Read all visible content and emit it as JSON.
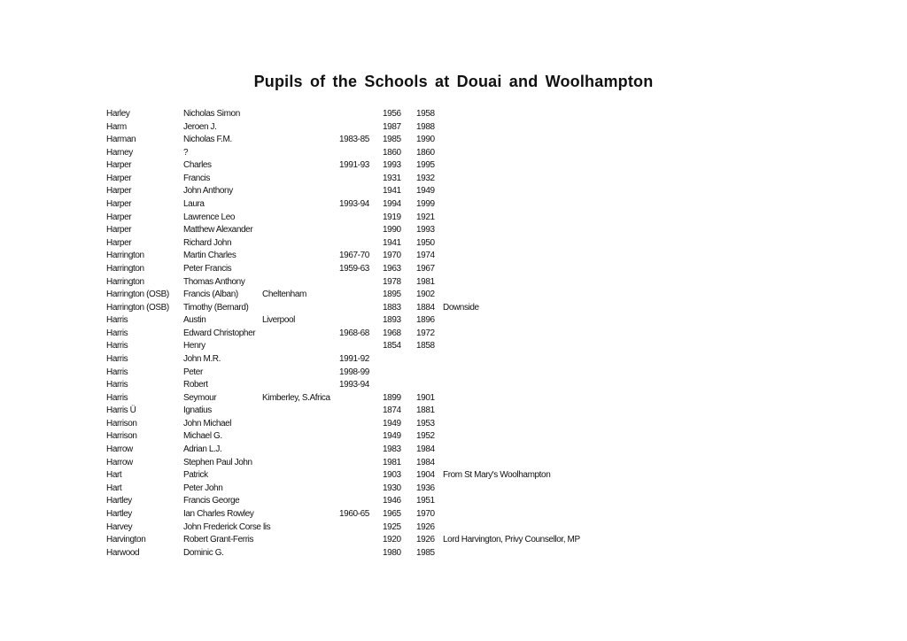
{
  "title": "Pupils of the Schools at Douai and Woolhampton",
  "rows": [
    [
      "Harley",
      "Nicholas Simon",
      "",
      "",
      "1956",
      "1958",
      ""
    ],
    [
      "Harm",
      "Jeroen J.",
      "",
      "",
      "1987",
      "1988",
      ""
    ],
    [
      "Harman",
      "Nicholas F.M.",
      "",
      "1983-85",
      "1985",
      "1990",
      ""
    ],
    [
      "Harney",
      "?",
      "",
      "",
      "1860",
      "1860",
      ""
    ],
    [
      "Harper",
      "Charles",
      "",
      "1991-93",
      "1993",
      "1995",
      ""
    ],
    [
      "Harper",
      "Francis",
      "",
      "",
      "1931",
      "1932",
      ""
    ],
    [
      "Harper",
      "John Anthony",
      "",
      "",
      "1941",
      "1949",
      ""
    ],
    [
      "Harper",
      "Laura",
      "",
      "1993-94",
      "1994",
      "1999",
      ""
    ],
    [
      "Harper",
      "Lawrence Leo",
      "",
      "",
      "1919",
      "1921",
      ""
    ],
    [
      "Harper",
      "Matthew Alexander",
      "",
      "",
      "1990",
      "1993",
      ""
    ],
    [
      "Harper",
      "Richard John",
      "",
      "",
      "1941",
      "1950",
      ""
    ],
    [
      "Harrington",
      "Martin Charles",
      "",
      "1967-70",
      "1970",
      "1974",
      ""
    ],
    [
      "Harrington",
      "Peter Francis",
      "",
      "1959-63",
      "1963",
      "1967",
      ""
    ],
    [
      "Harrington",
      "Thomas Anthony",
      "",
      "",
      "1978",
      "1981",
      ""
    ],
    [
      "Harrington (OSB)",
      "Francis (Alban)",
      "Cheltenham",
      "",
      "1895",
      "1902",
      ""
    ],
    [
      "Harrington (OSB)",
      "Timothy (Bernard)",
      "",
      "",
      "1883",
      "1884",
      "Downside"
    ],
    [
      "Harris",
      "Austin",
      "Liverpool",
      "",
      "1893",
      "1896",
      ""
    ],
    [
      "Harris",
      "Edward Christopher",
      "",
      "1968-68",
      "1968",
      "1972",
      ""
    ],
    [
      "Harris",
      "Henry",
      "",
      "",
      "1854",
      "1858",
      ""
    ],
    [
      "Harris",
      "John M.R.",
      "",
      "1991-92",
      "",
      "",
      ""
    ],
    [
      "Harris",
      "Peter",
      "",
      "1998-99",
      "",
      "",
      ""
    ],
    [
      "Harris",
      "Robert",
      "",
      "1993-94",
      "",
      "",
      ""
    ],
    [
      "Harris",
      "Seymour",
      "Kimberley, S.Africa",
      "",
      "1899",
      "1901",
      ""
    ],
    [
      "Harris Ü",
      "Ignatius",
      "",
      "",
      "1874",
      "1881",
      ""
    ],
    [
      "Harrison",
      "John Michael",
      "",
      "",
      "1949",
      "1953",
      ""
    ],
    [
      "Harrison",
      "Michael G.",
      "",
      "",
      "1949",
      "1952",
      ""
    ],
    [
      "Harrow",
      "Adrian L.J.",
      "",
      "",
      "1983",
      "1984",
      ""
    ],
    [
      "Harrow",
      "Stephen Paul John",
      "",
      "",
      "1981",
      "1984",
      ""
    ],
    [
      "Hart",
      "Patrick",
      "",
      "",
      "1903",
      "1904",
      "From St Mary's Woolhampton"
    ],
    [
      "Hart",
      "Peter John",
      "",
      "",
      "1930",
      "1936",
      ""
    ],
    [
      "Hartley",
      "Francis George",
      "",
      "",
      "1946",
      "1951",
      ""
    ],
    [
      "Hartley",
      "Ian Charles Rowley",
      "",
      "1960-65",
      "1965",
      "1970",
      ""
    ],
    [
      "Harvey",
      "John Frederick Corse lis",
      "",
      "",
      "1925",
      "1926",
      ""
    ],
    [
      "Harvington",
      "Robert Grant-Ferris",
      "",
      "",
      "1920",
      "1926",
      "Lord Harvington, Privy Counsellor, MP"
    ],
    [
      "Harwood",
      "Dominic G.",
      "",
      "",
      "1980",
      "1985",
      ""
    ]
  ]
}
